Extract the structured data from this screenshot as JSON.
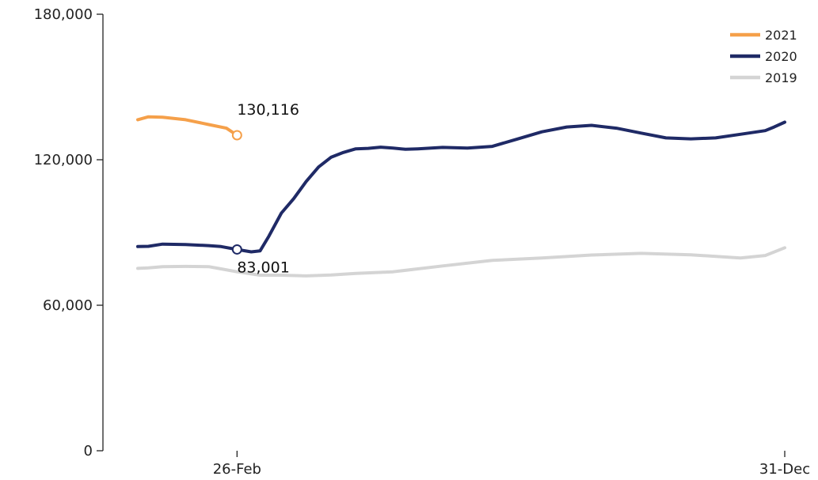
{
  "chart_data": {
    "type": "line",
    "title": "",
    "xlabel": "",
    "ylabel": "",
    "x_ticks": [
      {
        "label": "26-Feb",
        "x": 57
      },
      {
        "label": "31-Dec",
        "x": 366
      }
    ],
    "xlim": [
      1,
      366
    ],
    "ylim": [
      0,
      180000
    ],
    "y_ticks": [
      {
        "label": "0",
        "value": 0
      },
      {
        "label": "60,000",
        "value": 60000
      },
      {
        "label": "120,000",
        "value": 120000
      },
      {
        "label": "180,000",
        "value": 180000
      }
    ],
    "legend_position": "top-right",
    "series": [
      {
        "name": "2021",
        "color": "#f5a04a",
        "x": [
          1,
          7,
          15,
          28,
          41,
          51,
          57
        ],
        "y": [
          136500,
          137700,
          137500,
          136500,
          134500,
          133000,
          130116
        ]
      },
      {
        "name": "2020",
        "color": "#1f2a66",
        "x": [
          1,
          7,
          15,
          28,
          41,
          48,
          57,
          65,
          70,
          75,
          82,
          89,
          96,
          103,
          110,
          117,
          124,
          131,
          138,
          145,
          152,
          159,
          173,
          187,
          201,
          215,
          229,
          243,
          257,
          271,
          285,
          299,
          313,
          327,
          341,
          355,
          360,
          366
        ],
        "y": [
          84200,
          84300,
          85200,
          85000,
          84600,
          84200,
          83001,
          82000,
          82400,
          88500,
          98000,
          104000,
          111000,
          117000,
          121000,
          123000,
          124500,
          124700,
          125200,
          124800,
          124300,
          124500,
          125100,
          124800,
          125500,
          128500,
          131500,
          133500,
          134200,
          133000,
          131000,
          129000,
          128600,
          129000,
          130500,
          132000,
          133500,
          135500
        ]
      },
      {
        "name": "2019",
        "color": "#d4d4d4",
        "x": [
          1,
          7,
          15,
          28,
          41,
          48,
          57,
          70,
          82,
          96,
          110,
          124,
          145,
          173,
          201,
          229,
          257,
          285,
          313,
          341,
          355,
          366
        ],
        "y": [
          75200,
          75400,
          75900,
          76000,
          75900,
          75000,
          73800,
          72400,
          72400,
          72100,
          72500,
          73100,
          73800,
          76200,
          78500,
          79500,
          80700,
          81400,
          80800,
          79500,
          80500,
          83700
        ]
      }
    ],
    "annotations": [
      {
        "series": "2021",
        "x": 57,
        "y": 130116,
        "label": "130,116",
        "position": "above"
      },
      {
        "series": "2020",
        "x": 57,
        "y": 83001,
        "label": "83,001",
        "position": "below"
      }
    ]
  }
}
